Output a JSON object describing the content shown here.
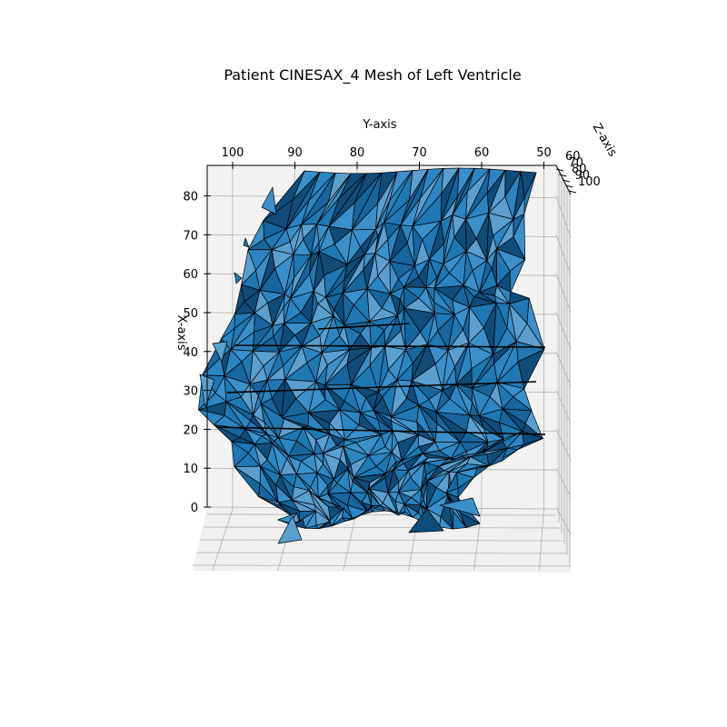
{
  "chart_data": {
    "type": "mesh3d",
    "title": "Patient CINESAX_4 Mesh of Left Ventricle",
    "xlabel": "X-axis",
    "ylabel": "Y-axis",
    "zlabel": "Z-axis",
    "x_ticks": [
      "0",
      "10",
      "20",
      "30",
      "40",
      "50",
      "60",
      "70",
      "80"
    ],
    "y_ticks": [
      "100",
      "90",
      "80",
      "70",
      "60",
      "50"
    ],
    "z_ticks": [
      "60",
      "70",
      "80",
      "90",
      "100"
    ],
    "xlim": [
      0,
      85
    ],
    "ylim": [
      104,
      50
    ],
    "zlim": [
      60,
      100
    ],
    "grid": true,
    "colors": {
      "face": "#1f77b4",
      "face_light": "#5a9fd0",
      "face_dark": "#0f4c7a",
      "edge": "#000000",
      "pane": "#f2f2f2",
      "grid": "#b0b0b0"
    }
  }
}
